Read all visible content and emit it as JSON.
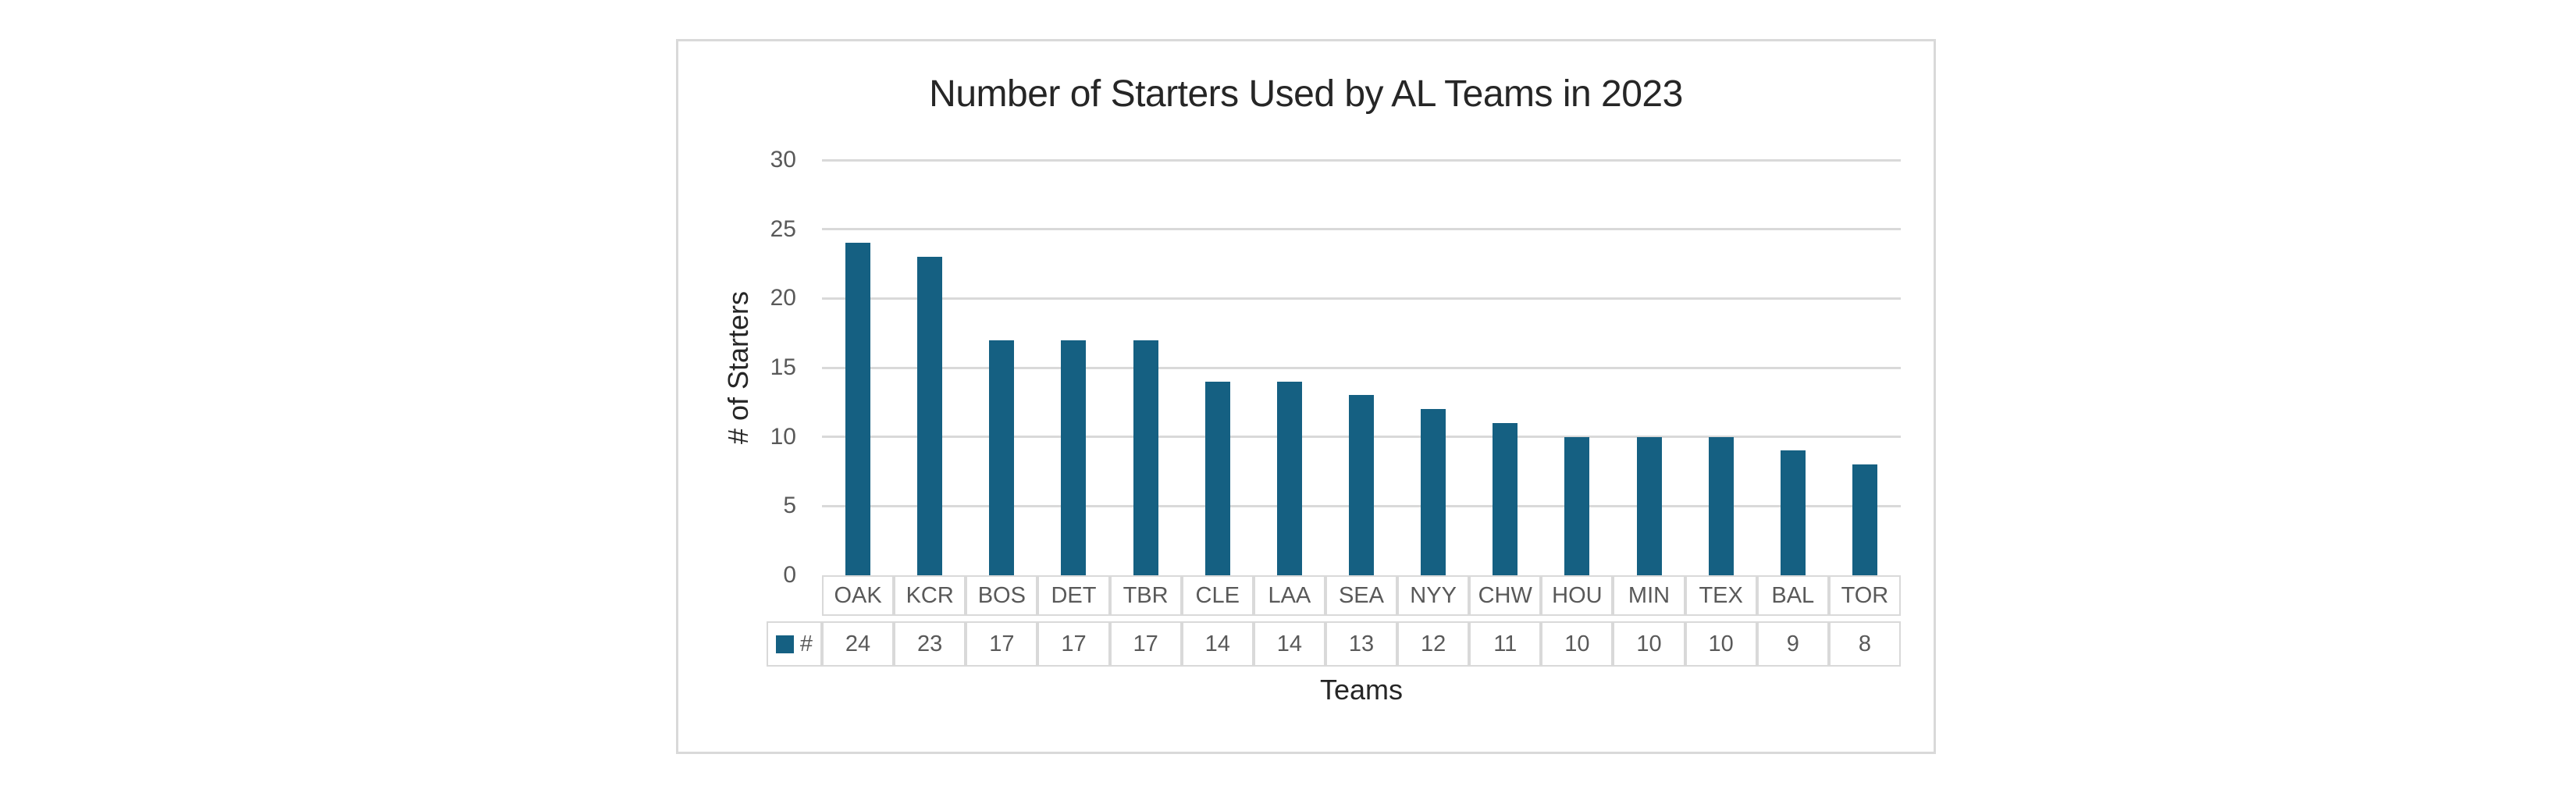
{
  "chart_data": {
    "type": "bar",
    "title": "Number of Starters Used by AL Teams in 2023",
    "xlabel": "Teams",
    "ylabel": "# of Starters",
    "categories": [
      "OAK",
      "KCR",
      "BOS",
      "DET",
      "TBR",
      "CLE",
      "LAA",
      "SEA",
      "NYY",
      "CHW",
      "HOU",
      "MIN",
      "TEX",
      "BAL",
      "TOR"
    ],
    "series": [
      {
        "name": "#",
        "values": [
          24,
          23,
          17,
          17,
          17,
          14,
          14,
          13,
          12,
          11,
          10,
          10,
          10,
          9,
          8
        ]
      }
    ],
    "ylim": [
      0,
      30
    ],
    "yticks": [
      0,
      5,
      10,
      15,
      20,
      25,
      30
    ],
    "grid": true,
    "legend_position": "data-table-left",
    "data_table_shown": true,
    "colors": {
      "bar": "#156082",
      "gridline": "#D9D9D9",
      "frame_border": "#D9D9D9",
      "table_border": "#D9D9D9",
      "tick_text": "#595959",
      "table_text": "#595959",
      "title_text": "#262626"
    }
  }
}
